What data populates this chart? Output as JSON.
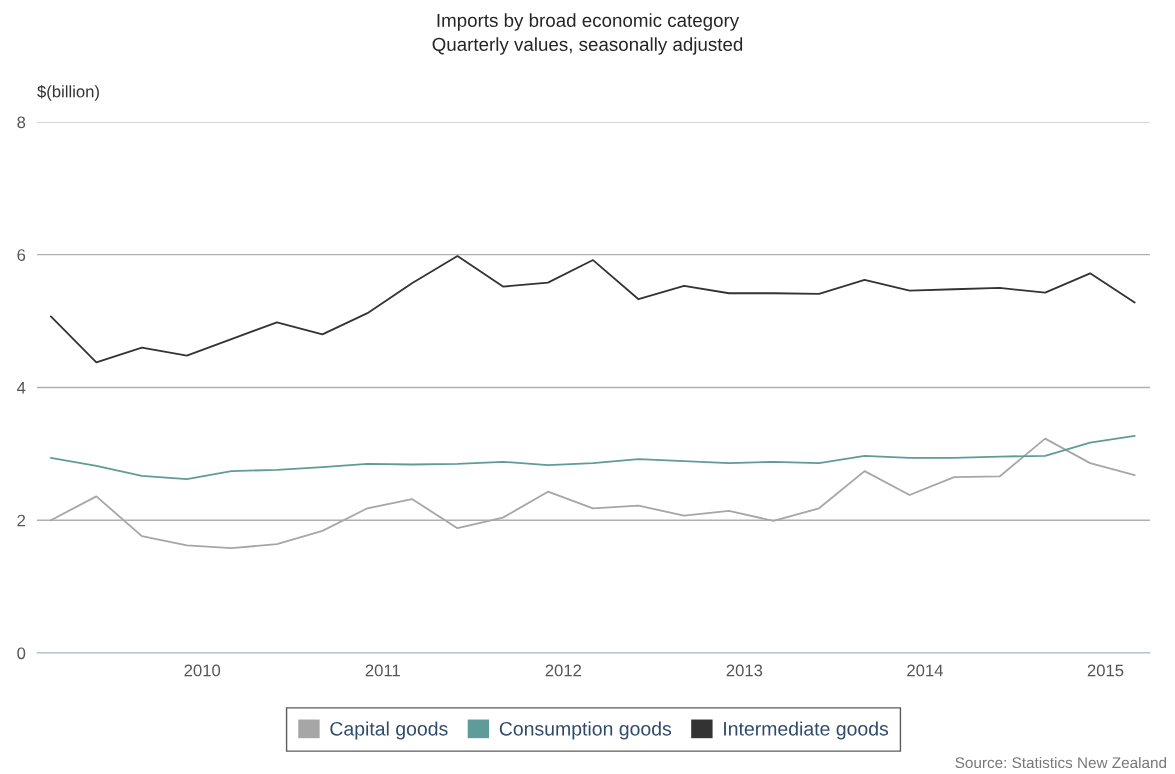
{
  "chart_data": {
    "type": "line",
    "title": "Imports by broad economic category",
    "subtitle": "Quarterly values, seasonally adjusted",
    "ylabel": "$(billion)",
    "x": [
      "2009-03",
      "2009-06",
      "2009-09",
      "2009-12",
      "2010-03",
      "2010-06",
      "2010-09",
      "2010-12",
      "2011-03",
      "2011-06",
      "2011-09",
      "2011-12",
      "2012-03",
      "2012-06",
      "2012-09",
      "2012-12",
      "2013-03",
      "2013-06",
      "2013-09",
      "2013-12",
      "2014-03",
      "2014-06",
      "2014-09",
      "2014-12",
      "2015-03"
    ],
    "series": [
      {
        "name": "Capital goods",
        "color": "#a6a6a6",
        "values": [
          2.0,
          2.36,
          1.76,
          1.62,
          1.58,
          1.64,
          1.84,
          2.18,
          2.32,
          1.88,
          2.04,
          2.43,
          2.18,
          2.22,
          2.07,
          2.14,
          1.99,
          2.18,
          2.74,
          2.38,
          2.65,
          2.66,
          3.23,
          2.86,
          2.68
        ]
      },
      {
        "name": "Consumption goods",
        "color": "#5f9b98",
        "values": [
          2.94,
          2.82,
          2.67,
          2.62,
          2.74,
          2.76,
          2.8,
          2.85,
          2.84,
          2.85,
          2.88,
          2.83,
          2.86,
          2.92,
          2.89,
          2.86,
          2.88,
          2.86,
          2.97,
          2.94,
          2.94,
          2.96,
          2.97,
          3.17,
          3.27
        ]
      },
      {
        "name": "Intermediate goods",
        "color": "#333333",
        "values": [
          5.07,
          4.38,
          4.6,
          4.48,
          4.73,
          4.98,
          4.8,
          5.12,
          5.57,
          5.98,
          5.52,
          5.58,
          5.92,
          5.33,
          5.53,
          5.42,
          5.42,
          5.41,
          5.62,
          5.46,
          5.48,
          5.5,
          5.43,
          5.72,
          5.28
        ]
      }
    ],
    "xlim": [
      "2009-02",
      "2015-04"
    ],
    "xticks": [
      {
        "value": "2010",
        "label": "2010"
      },
      {
        "value": "2011",
        "label": "2011"
      },
      {
        "value": "2012",
        "label": "2012"
      },
      {
        "value": "2013",
        "label": "2013"
      },
      {
        "value": "2014",
        "label": "2014"
      },
      {
        "value": "2015",
        "label": "2015"
      }
    ],
    "ylim": [
      0,
      8
    ],
    "yticks": [
      0,
      2,
      4,
      6,
      8
    ],
    "grid": "y",
    "legend": "bottom",
    "marker": "none",
    "line_style": "solid",
    "annotations": [
      "Source: Statistics New Zealand"
    ]
  }
}
